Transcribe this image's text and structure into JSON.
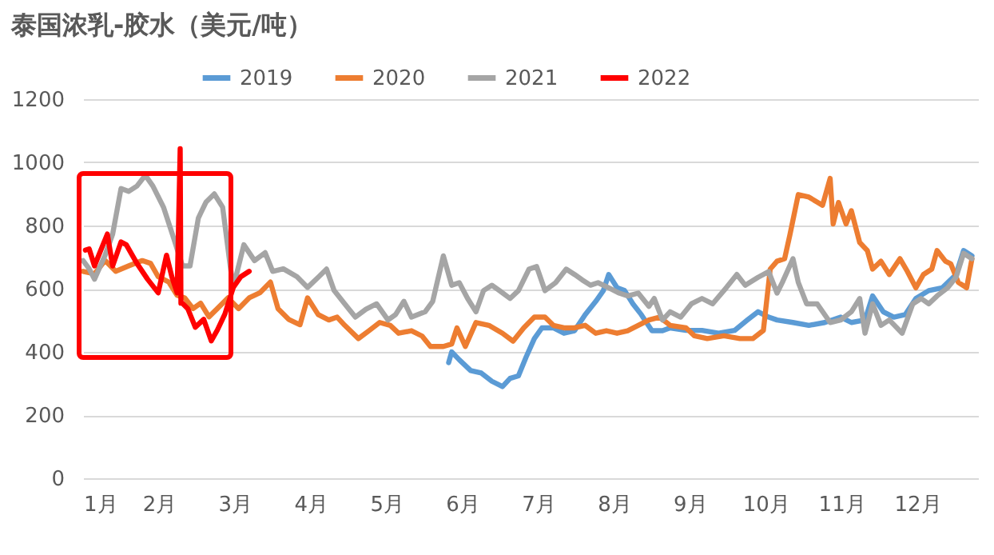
{
  "chart_data": {
    "type": "line",
    "title": "泰国浓乳-胶水（美元/吨）",
    "xlim": [
      1,
      12.8
    ],
    "xticks": [
      {
        "value": 1,
        "label": "1月"
      },
      {
        "value": 2,
        "label": "2月"
      },
      {
        "value": 3,
        "label": "3月"
      },
      {
        "value": 4,
        "label": "4月"
      },
      {
        "value": 5,
        "label": "5月"
      },
      {
        "value": 6,
        "label": "6月"
      },
      {
        "value": 7,
        "label": "7月"
      },
      {
        "value": 8,
        "label": "8月"
      },
      {
        "value": 9,
        "label": "9月"
      },
      {
        "value": 10,
        "label": "10月"
      },
      {
        "value": 11,
        "label": "11月"
      },
      {
        "value": 12,
        "label": "12月"
      }
    ],
    "ylim": [
      0,
      1200
    ],
    "yticks": [
      0,
      200,
      400,
      600,
      800,
      1000,
      1200
    ],
    "grid": "y",
    "legend": "top",
    "line_style": "solid",
    "marker": "none",
    "series": [
      {
        "name": "2019",
        "color": "#5b9bd5",
        "x": [
          5.82,
          5.86,
          5.96,
          6.11,
          6.25,
          6.39,
          6.53,
          6.63,
          6.74,
          6.84,
          6.95,
          7.05,
          7.2,
          7.34,
          7.48,
          7.62,
          7.76,
          7.86,
          7.93,
          8.04,
          8.14,
          8.25,
          8.36,
          8.5,
          8.64,
          8.74,
          8.95,
          9.16,
          9.38,
          9.59,
          9.76,
          9.9,
          10.04,
          10.15,
          10.36,
          10.57,
          10.78,
          10.99,
          11.13,
          11.31,
          11.41,
          11.55,
          11.69,
          11.84,
          11.98,
          12.15,
          12.33,
          12.51,
          12.61,
          12.72
        ],
        "values": [
          366,
          400,
          375,
          341,
          333,
          307,
          290,
          316,
          324,
          383,
          442,
          476,
          476,
          459,
          467,
          518,
          560,
          594,
          645,
          603,
          594,
          552,
          518,
          467,
          467,
          476,
          468,
          468,
          459,
          468,
          501,
          527,
          510,
          501,
          493,
          484,
          493,
          510,
          493,
          501,
          577,
          527,
          510,
          518,
          569,
          594,
          603,
          645,
          721,
          704
        ]
      },
      {
        "name": "2020",
        "color": "#ed7d31",
        "x": [
          1.0,
          1.15,
          1.29,
          1.43,
          1.6,
          1.78,
          1.89,
          1.99,
          2.13,
          2.24,
          2.34,
          2.45,
          2.55,
          2.66,
          2.77,
          2.91,
          3.05,
          3.19,
          3.33,
          3.47,
          3.57,
          3.71,
          3.86,
          3.96,
          4.1,
          4.24,
          4.35,
          4.45,
          4.63,
          4.77,
          4.91,
          5.05,
          5.16,
          5.33,
          5.47,
          5.58,
          5.75,
          5.86,
          5.93,
          6.04,
          6.18,
          6.35,
          6.53,
          6.67,
          6.81,
          6.95,
          7.09,
          7.2,
          7.34,
          7.48,
          7.62,
          7.76,
          7.9,
          8.04,
          8.18,
          8.32,
          8.46,
          8.6,
          8.74,
          8.95,
          9.06,
          9.23,
          9.45,
          9.66,
          9.83,
          9.97,
          10.06,
          10.15,
          10.25,
          10.32,
          10.43,
          10.57,
          10.75,
          10.85,
          10.89,
          10.96,
          11.06,
          11.13,
          11.24,
          11.34,
          11.41,
          11.52,
          11.63,
          11.77,
          11.87,
          11.98,
          12.08,
          12.19,
          12.26,
          12.37,
          12.44,
          12.54,
          12.65,
          12.72
        ],
        "values": [
          655,
          647,
          689,
          655,
          672,
          689,
          680,
          638,
          621,
          579,
          571,
          537,
          554,
          511,
          537,
          571,
          537,
          571,
          587,
          621,
          537,
          503,
          486,
          571,
          518,
          501,
          510,
          484,
          442,
          467,
          493,
          484,
          459,
          467,
          450,
          417,
          417,
          425,
          476,
          417,
          493,
          484,
          459,
          434,
          476,
          510,
          510,
          484,
          476,
          476,
          484,
          459,
          467,
          459,
          467,
          484,
          501,
          510,
          484,
          476,
          451,
          442,
          451,
          442,
          442,
          468,
          662,
          687,
          695,
          771,
          898,
          890,
          864,
          949,
          805,
          873,
          805,
          847,
          746,
          721,
          662,
          687,
          645,
          695,
          654,
          603,
          645,
          662,
          721,
          687,
          679,
          620,
          603,
          695
        ]
      },
      {
        "name": "2021",
        "color": "#a5a5a5",
        "x": [
          1.0,
          1.08,
          1.15,
          1.29,
          1.39,
          1.5,
          1.6,
          1.71,
          1.82,
          1.92,
          2.06,
          2.2,
          2.31,
          2.41,
          2.52,
          2.62,
          2.73,
          2.84,
          2.94,
          2.98,
          3.12,
          3.26,
          3.4,
          3.5,
          3.64,
          3.82,
          3.96,
          4.1,
          4.21,
          4.31,
          4.45,
          4.59,
          4.73,
          4.87,
          5.02,
          5.12,
          5.23,
          5.33,
          5.51,
          5.61,
          5.75,
          5.86,
          5.96,
          6.07,
          6.18,
          6.28,
          6.39,
          6.49,
          6.63,
          6.74,
          6.88,
          6.98,
          7.09,
          7.23,
          7.37,
          7.48,
          7.58,
          7.69,
          7.79,
          7.93,
          8.07,
          8.18,
          8.32,
          8.46,
          8.53,
          8.64,
          8.74,
          8.88,
          9.02,
          9.16,
          9.3,
          9.48,
          9.62,
          9.73,
          9.9,
          10.04,
          10.15,
          10.22,
          10.36,
          10.43,
          10.54,
          10.68,
          10.85,
          10.99,
          11.13,
          11.24,
          11.31,
          11.41,
          11.52,
          11.63,
          11.8,
          11.94,
          12.05,
          12.15,
          12.26,
          12.4,
          12.51,
          12.61,
          12.72
        ],
        "values": [
          689,
          663,
          630,
          706,
          773,
          917,
          908,
          925,
          959,
          925,
          858,
          756,
          672,
          672,
          824,
          874,
          900,
          858,
          672,
          604,
          739,
          689,
          714,
          655,
          663,
          638,
          604,
          636,
          662,
          594,
          552,
          510,
          535,
          552,
          501,
          518,
          560,
          510,
          527,
          560,
          704,
          611,
          619,
          569,
          527,
          594,
          611,
          594,
          569,
          594,
          662,
          670,
          594,
          619,
          662,
          645,
          628,
          611,
          619,
          603,
          586,
          577,
          586,
          544,
          569,
          501,
          527,
          510,
          552,
          569,
          552,
          603,
          645,
          611,
          636,
          654,
          586,
          620,
          695,
          620,
          552,
          552,
          493,
          501,
          527,
          569,
          459,
          552,
          484,
          501,
          459,
          552,
          569,
          552,
          577,
          603,
          636,
          712,
          695
        ]
      },
      {
        "name": "2022",
        "color": "#ff0000",
        "x": [
          1.03,
          1.08,
          1.15,
          1.22,
          1.32,
          1.39,
          1.5,
          1.57,
          1.71,
          1.85,
          1.99,
          2.1,
          2.17,
          2.24,
          2.28,
          2.29,
          2.31,
          2.38,
          2.48,
          2.59,
          2.69,
          2.77,
          2.87,
          2.98,
          3.08,
          3.19
        ],
        "values": [
          722,
          726,
          672,
          714,
          773,
          672,
          748,
          739,
          680,
          630,
          587,
          706,
          638,
          587,
          1043,
          554,
          554,
          537,
          478,
          503,
          435,
          469,
          520,
          604,
          638,
          655
        ]
      }
    ]
  }
}
